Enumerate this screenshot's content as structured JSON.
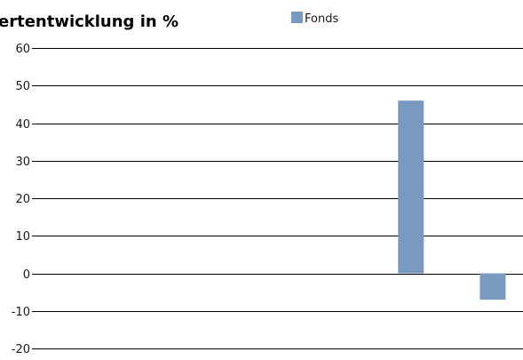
{
  "chart_data": {
    "type": "bar",
    "title": "ertentwicklung in %",
    "legend": {
      "entries": [
        {
          "label": "Fonds",
          "color": "#7a99be"
        }
      ],
      "placement": "top"
    },
    "categories": [
      "",
      "",
      "",
      "",
      "",
      ""
    ],
    "series": [
      {
        "name": "Fonds",
        "color": "#7a99be",
        "values": [
          null,
          null,
          null,
          null,
          46,
          -7
        ]
      }
    ],
    "y_ticks": [
      "60",
      "50",
      "40",
      "30",
      "20",
      "10",
      "0",
      "-10",
      "-20"
    ],
    "ylim": [
      -20,
      60
    ],
    "grid": true,
    "xlabel": "",
    "ylabel": ""
  }
}
